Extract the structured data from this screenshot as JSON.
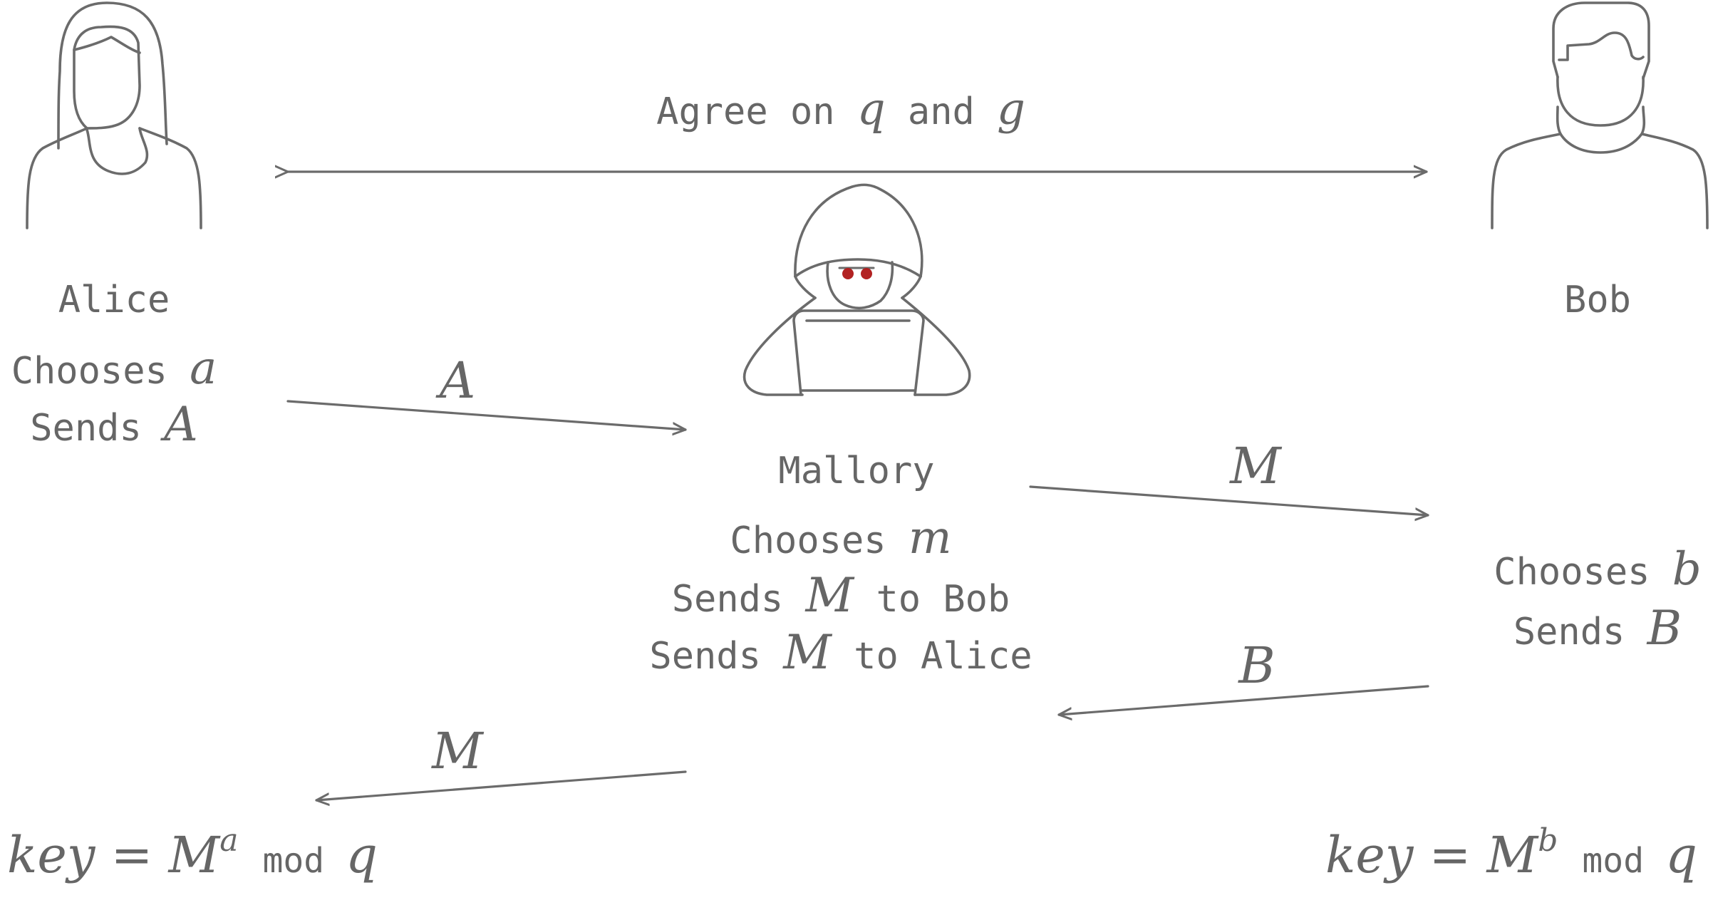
{
  "agree": {
    "text": "Agree on ",
    "v1": "q",
    "mid": " and ",
    "v2": "g"
  },
  "alice": {
    "name": "Alice",
    "choose_text": "Chooses ",
    "choose_var": "a",
    "send_text": "Sends ",
    "send_var": "A",
    "key": {
      "lhs": "key",
      "eq": " = ",
      "base": "M",
      "exp": "a",
      "mod": "mod",
      "var": "q"
    }
  },
  "bob": {
    "name": "Bob",
    "choose_text": "Chooses ",
    "choose_var": "b",
    "send_text": "Sends ",
    "send_var": "B",
    "key": {
      "lhs": "key",
      "eq": " = ",
      "base": "M",
      "exp": "b",
      "mod": "mod",
      "var": "q"
    }
  },
  "mallory": {
    "name": "Mallory",
    "choose_text": "Chooses ",
    "choose_var": "m",
    "send_bob_pre": "Sends ",
    "send_bob_var": "M",
    "send_bob_post": " to Bob",
    "send_alice_pre": "Sends ",
    "send_alice_var": "M",
    "send_alice_post": " to Alice",
    "eye_color": "#b22222"
  },
  "arrows": {
    "a_to_mallory": "A",
    "mallory_to_bob": "M",
    "bob_to_mallory": "B",
    "mallory_to_alice": "M"
  },
  "colors": {
    "ink": "#666666",
    "eyes": "#b22222"
  }
}
